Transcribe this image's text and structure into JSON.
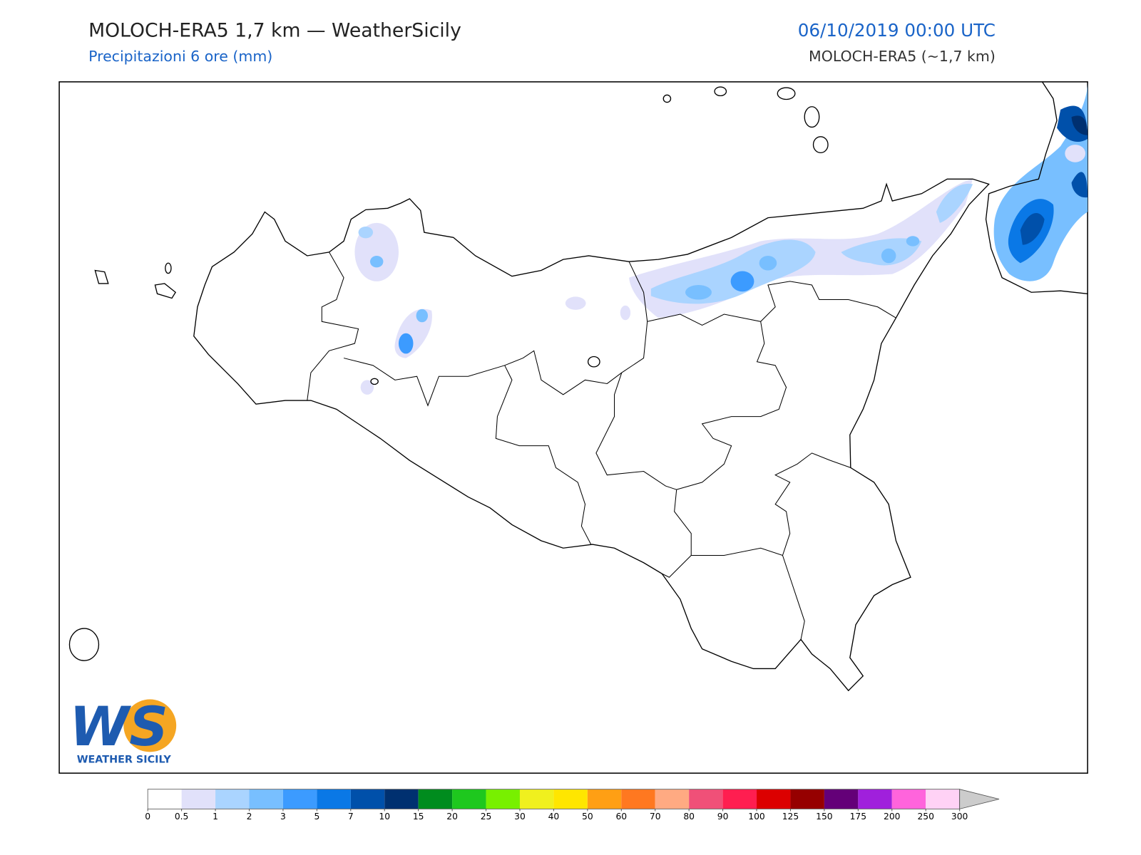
{
  "header": {
    "title": "MOLOCH-ERA5 1,7 km — WeatherSicily",
    "subtitle": "Precipitazioni 6 ore (mm)",
    "datetime": "06/10/2019 00:00 UTC",
    "model": "MOLOCH-ERA5 (~1,7 km)"
  },
  "logo": {
    "mark": "WS",
    "text": "WEATHER SICILY"
  },
  "colorbar": {
    "levels": [
      0,
      0.5,
      1,
      2,
      3,
      5,
      7,
      10,
      15,
      20,
      25,
      30,
      40,
      50,
      60,
      70,
      80,
      90,
      100,
      125,
      150,
      175,
      200,
      250,
      300
    ],
    "colors": [
      "#ffffff",
      "#e1e1fa",
      "#aad4ff",
      "#78bfff",
      "#3c9bff",
      "#0a78e6",
      "#0050aa",
      "#003070",
      "#008c1e",
      "#1ec81e",
      "#78f000",
      "#f0f01e",
      "#ffe600",
      "#ff9f14",
      "#ff7820",
      "#ffaa82",
      "#f05078",
      "#ff1e50",
      "#dc0000",
      "#960000",
      "#640078",
      "#a020dc",
      "#ff64dc",
      "#ffd2f5"
    ],
    "extend_color": "#cccccc"
  }
}
